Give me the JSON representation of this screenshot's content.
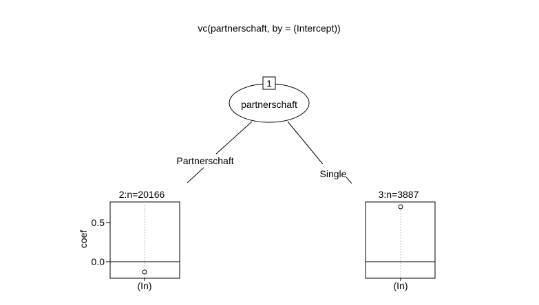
{
  "title": "vc(partnerschaft, by = (Intercept))",
  "root": {
    "id_label": "1",
    "split_variable": "partnerschaft"
  },
  "edges": {
    "left_label": "Partnerschaft",
    "right_label": "Single"
  },
  "nodes": [
    {
      "node_label": "2:n=20166",
      "x_tick_label": "(In)",
      "y_axis_label": "coef",
      "y_tick_labels": [
        "0.5",
        "0.0"
      ]
    },
    {
      "node_label": "3:n=3887",
      "x_tick_label": "(In)"
    }
  ],
  "chart_data": {
    "type": "scatter",
    "title": "",
    "shared_y_axis": {
      "label": "coef",
      "ticks": [
        0.0,
        0.5
      ],
      "ylim": [
        -0.2,
        0.78
      ],
      "reference_line": 0.0
    },
    "panels": [
      {
        "name": "2:n=20166",
        "categories": [
          "(In)"
        ],
        "values": [
          -0.13
        ]
      },
      {
        "name": "3:n=3887",
        "categories": [
          "(In)"
        ],
        "values": [
          0.7
        ]
      }
    ]
  }
}
